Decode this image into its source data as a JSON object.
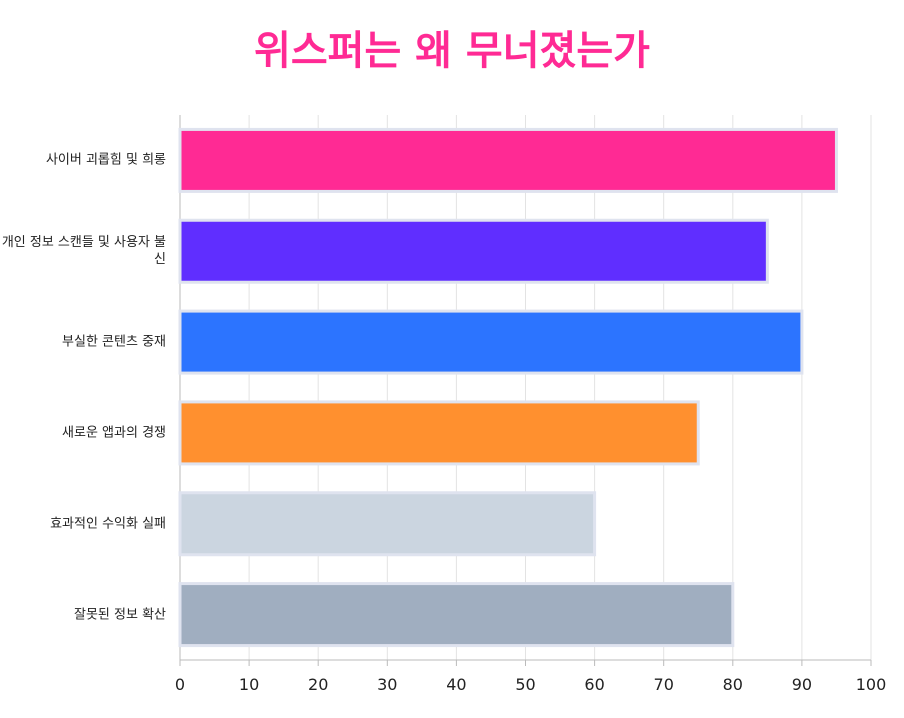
{
  "chart_data": {
    "type": "bar",
    "orientation": "horizontal",
    "title": "위스퍼는 왜 무너졌는가",
    "categories": [
      "사이버 괴롭힘 및 희롱",
      "개인 정보 스캔들 및 사용자 불신",
      "부실한 콘텐츠 중재",
      "새로운 앱과의 경쟁",
      "효과적인 수익화 실패",
      "잘못된 정보 확산"
    ],
    "values": [
      95,
      85,
      90,
      75,
      60,
      80
    ],
    "colors": [
      "#ff2a94",
      "#602eff",
      "#2c74ff",
      "#ff902f",
      "#cbd5e0",
      "#a0aec0"
    ],
    "xlim": [
      0,
      100
    ],
    "xticks": [
      0,
      10,
      20,
      30,
      40,
      50,
      60,
      70,
      80,
      90,
      100
    ],
    "grid": true
  }
}
